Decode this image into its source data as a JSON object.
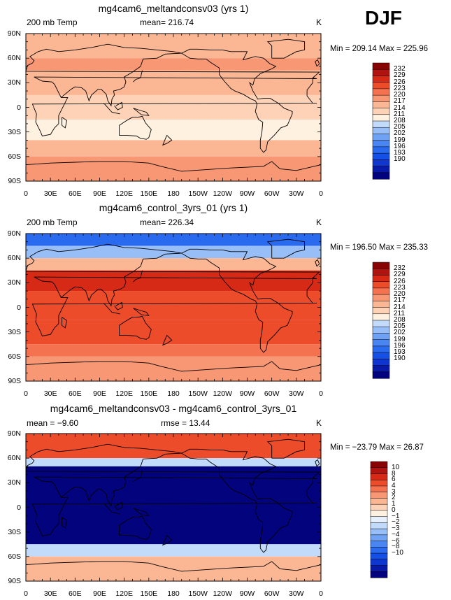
{
  "season": "DJF",
  "units": "K",
  "lon_ticks": [
    "0",
    "30E",
    "60E",
    "90E",
    "120E",
    "150E",
    "180",
    "150W",
    "120W",
    "90W",
    "60W",
    "30W",
    "0"
  ],
  "lat_ticks": [
    "90N",
    "60N",
    "30N",
    "0",
    "30S",
    "60S",
    "90S"
  ],
  "colors": {
    "main_scale": [
      "#03037e",
      "#0a1aa8",
      "#0f37d0",
      "#1550e6",
      "#2a6aef",
      "#4a86f2",
      "#6fa1f4",
      "#97bef7",
      "#c3dbfa",
      "#fff1e0",
      "#fdd2b6",
      "#fbb694",
      "#f89773",
      "#f47250",
      "#ed4c2a",
      "#d62a16",
      "#b01410",
      "#880404"
    ],
    "diff_scale": [
      "#03037e",
      "#0a1aa8",
      "#0f37d0",
      "#1550e6",
      "#2a6aef",
      "#4a86f2",
      "#6fa1f4",
      "#97bef7",
      "#c3dbfa",
      "#e6f0fd",
      "#fff1e0",
      "#fdd2b6",
      "#fbb694",
      "#f89773",
      "#f47250",
      "#ed4c2a",
      "#d62a16",
      "#b01410",
      "#880404"
    ]
  },
  "panels": [
    {
      "title": "mg4cam6_meltandconsv03 (yrs 1)",
      "left_label": "200 mb Temp",
      "center_label": "mean= 216.74",
      "right_label": "K",
      "minmax": "Min = 209.14 Max = 225.96",
      "colorbar_labels": [
        "232",
        "229",
        "226",
        "223",
        "220",
        "217",
        "214",
        "211",
        "208",
        "205",
        "202",
        "199",
        "196",
        "193",
        "190"
      ]
    },
    {
      "title": "mg4cam6_control_3yrs_01 (yrs 1)",
      "left_label": "200 mb Temp",
      "center_label": "mean= 226.34",
      "right_label": "K",
      "minmax": "Min = 196.50 Max = 235.33",
      "colorbar_labels": [
        "232",
        "229",
        "226",
        "223",
        "220",
        "217",
        "214",
        "211",
        "208",
        "205",
        "202",
        "199",
        "196",
        "193",
        "190"
      ]
    },
    {
      "title": "mg4cam6_meltandconsv03 - mg4cam6_control_3yrs_01",
      "left_label": "mean = −9.60",
      "center_label": "rmse = 13.44",
      "right_label": "K",
      "minmax": "Min = −23.79 Max = 26.87",
      "colorbar_labels": [
        "10",
        "8",
        "6",
        "4",
        "3",
        "2",
        "1",
        "0",
        "−1",
        "−2",
        "−3",
        "−4",
        "−6",
        "−8",
        "−10"
      ]
    }
  ],
  "chart_data": [
    {
      "type": "heatmap",
      "title": "mg4cam6_meltandconsv03 (yrs 1)",
      "variable": "200 mb Temp",
      "units": "K",
      "mean": 216.74,
      "min": 209.14,
      "max": 225.96,
      "contour_levels": [
        190,
        193,
        196,
        199,
        202,
        205,
        208,
        211,
        214,
        217,
        220,
        223,
        226,
        229,
        232
      ],
      "lat_bands": [
        {
          "lat_range": [
            60,
            90
          ],
          "value_K": 221
        },
        {
          "lat_range": [
            45,
            60
          ],
          "value_K": 223
        },
        {
          "lat_range": [
            15,
            45
          ],
          "value_K": 220
        },
        {
          "lat_range": [
            -15,
            15
          ],
          "value_K": 217
        },
        {
          "lat_range": [
            -40,
            -15
          ],
          "value_K": 215
        },
        {
          "lat_range": [
            -60,
            -40
          ],
          "value_K": 220
        },
        {
          "lat_range": [
            -90,
            -60
          ],
          "value_K": 225
        }
      ]
    },
    {
      "type": "heatmap",
      "title": "mg4cam6_control_3yrs_01 (yrs 1)",
      "variable": "200 mb Temp",
      "units": "K",
      "mean": 226.34,
      "min": 196.5,
      "max": 235.33,
      "contour_levels": [
        190,
        193,
        196,
        199,
        202,
        205,
        208,
        211,
        214,
        217,
        220,
        223,
        226,
        229,
        232
      ],
      "lat_bands": [
        {
          "lat_range": [
            75,
            90
          ],
          "value_K": 199
        },
        {
          "lat_range": [
            60,
            75
          ],
          "value_K": 208
        },
        {
          "lat_range": [
            45,
            60
          ],
          "value_K": 220
        },
        {
          "lat_range": [
            20,
            45
          ],
          "value_K": 232
        },
        {
          "lat_range": [
            -15,
            20
          ],
          "value_K": 229
        },
        {
          "lat_range": [
            -45,
            -15
          ],
          "value_K": 230
        },
        {
          "lat_range": [
            -60,
            -45
          ],
          "value_K": 226
        },
        {
          "lat_range": [
            -90,
            -60
          ],
          "value_K": 223
        }
      ]
    },
    {
      "type": "heatmap",
      "title": "mg4cam6_meltandconsv03 - mg4cam6_control_3yrs_01",
      "variable": "200 mb Temp difference",
      "units": "K",
      "mean": -9.6,
      "rmse": 13.44,
      "min": -23.79,
      "max": 26.87,
      "contour_levels": [
        -10,
        -8,
        -6,
        -4,
        -3,
        -2,
        -1,
        0,
        1,
        2,
        3,
        4,
        6,
        8,
        10
      ],
      "lat_bands": [
        {
          "lat_range": [
            60,
            90
          ],
          "value_K": 12
        },
        {
          "lat_range": [
            50,
            60
          ],
          "value_K": 0
        },
        {
          "lat_range": [
            -45,
            50
          ],
          "value_K": -12
        },
        {
          "lat_range": [
            -60,
            -45
          ],
          "value_K": 0
        },
        {
          "lat_range": [
            -90,
            -60
          ],
          "value_K": 4
        }
      ]
    }
  ]
}
